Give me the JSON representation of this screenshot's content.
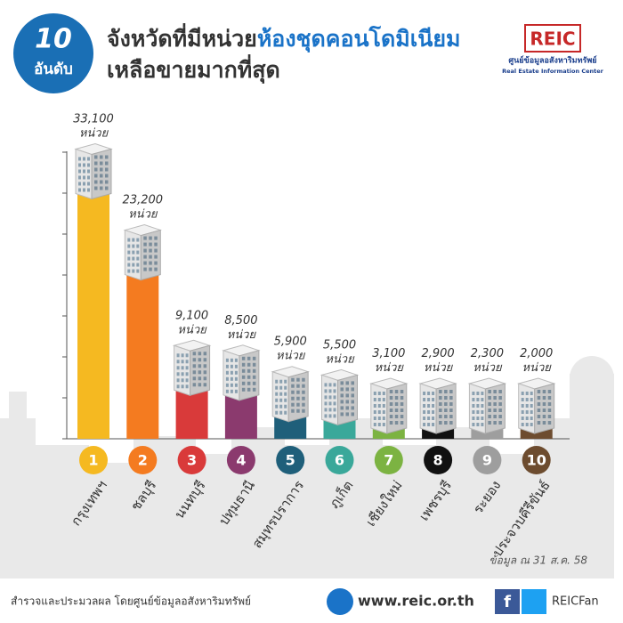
{
  "badge": {
    "number": "10",
    "word": "อันดับ"
  },
  "chart_data": {
    "type": "bar",
    "title_prefix": "จังหวัดที่มีหน่วย",
    "title_highlight": "ห้องชุดคอนโดมิเนียม",
    "title_line2": "เหลือขายมากที่สุด",
    "ranks": [
      "1",
      "2",
      "3",
      "4",
      "5",
      "6",
      "7",
      "8",
      "9",
      "10"
    ],
    "categories": [
      "กรุงเทพฯ",
      "ชลบุรี",
      "นนทบุรี",
      "ปทุมธานี",
      "สมุทรปราการ",
      "ภูเก็ต",
      "เชียงใหม่",
      "เพชรบุรี",
      "ระยอง",
      "ประจวบคีรีขันธ์"
    ],
    "values": [
      33100,
      23200,
      9100,
      8500,
      5900,
      5500,
      3100,
      2900,
      2300,
      2000
    ],
    "value_labels": [
      "33,100 หน่วย",
      "23,200 หน่วย",
      "9,100 หน่วย",
      "8,500 หน่วย",
      "5,900 หน่วย",
      "5,500 หน่วย",
      "3,100 หน่วย",
      "2,900 หน่วย",
      "2,300 หน่วย",
      "2,000 หน่วย"
    ],
    "colors": [
      "#f5b921",
      "#f47b20",
      "#d93a3a",
      "#8b3a6e",
      "#1f5f7a",
      "#3aa89a",
      "#7cb342",
      "#111111",
      "#9e9e9e",
      "#6d4c2f"
    ],
    "ylim": [
      0,
      35000
    ],
    "yticks": [
      0,
      5000,
      10000,
      15000,
      20000,
      25000,
      30000,
      35000
    ],
    "note": "ข้อมูล ณ 31 ส.ค. 58"
  },
  "logo": {
    "name": "REIC",
    "thai": "ศูนย์ข้อมูลอสังหาริมทรัพย์",
    "english": "Real Estate Information Center"
  },
  "footer": {
    "credit": "สำรวจและประมวลผล โดยศูนย์ข้อมูลอสังหาริมทรัพย์",
    "website": "www.reic.or.th",
    "social": "REICFan"
  }
}
